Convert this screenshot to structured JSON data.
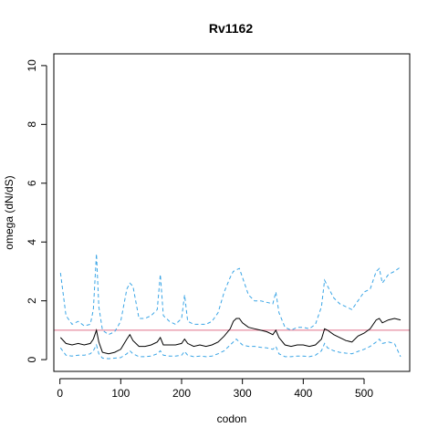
{
  "chart_data": {
    "type": "line",
    "title": "Rv1162",
    "xlabel": "codon",
    "ylabel": "omega (dN/dS)",
    "xlim": [
      -10,
      575
    ],
    "ylim": [
      -0.4,
      10.4
    ],
    "xticks": [
      0,
      100,
      200,
      300,
      400,
      500
    ],
    "yticks": [
      0,
      2,
      4,
      6,
      8,
      10
    ],
    "grid": false,
    "reference_line": {
      "y": 1,
      "color": "#e0708a"
    },
    "series": [
      {
        "style": "solid",
        "color": "#000000",
        "x": [
          1,
          10,
          20,
          30,
          40,
          50,
          55,
          60,
          64,
          70,
          80,
          90,
          100,
          110,
          115,
          120,
          130,
          140,
          150,
          160,
          165,
          170,
          180,
          190,
          200,
          205,
          210,
          220,
          230,
          240,
          250,
          260,
          270,
          280,
          285,
          290,
          295,
          300,
          310,
          320,
          330,
          340,
          350,
          355,
          360,
          370,
          380,
          390,
          400,
          410,
          420,
          430,
          435,
          440,
          450,
          460,
          470,
          480,
          490,
          500,
          510,
          520,
          525,
          530,
          540,
          550,
          560
        ],
        "y": [
          0.75,
          0.55,
          0.5,
          0.55,
          0.5,
          0.55,
          0.7,
          1.0,
          0.6,
          0.25,
          0.2,
          0.25,
          0.35,
          0.7,
          0.85,
          0.65,
          0.45,
          0.45,
          0.5,
          0.6,
          0.75,
          0.5,
          0.5,
          0.5,
          0.55,
          0.7,
          0.55,
          0.45,
          0.5,
          0.45,
          0.5,
          0.6,
          0.8,
          1.05,
          1.3,
          1.4,
          1.4,
          1.25,
          1.1,
          1.05,
          1.0,
          0.95,
          0.85,
          1.0,
          0.75,
          0.5,
          0.45,
          0.5,
          0.5,
          0.45,
          0.5,
          0.7,
          1.05,
          1.0,
          0.85,
          0.75,
          0.65,
          0.6,
          0.8,
          0.9,
          1.05,
          1.35,
          1.4,
          1.25,
          1.35,
          1.4,
          1.35
        ]
      },
      {
        "style": "dashed",
        "color": "#3aa5e6",
        "x": [
          1,
          10,
          20,
          30,
          40,
          50,
          55,
          60,
          64,
          70,
          80,
          90,
          100,
          110,
          115,
          120,
          130,
          140,
          150,
          160,
          165,
          170,
          180,
          190,
          200,
          205,
          210,
          220,
          230,
          240,
          250,
          260,
          270,
          280,
          285,
          290,
          295,
          300,
          310,
          320,
          330,
          340,
          350,
          355,
          360,
          370,
          380,
          390,
          400,
          410,
          420,
          430,
          435,
          440,
          450,
          460,
          470,
          480,
          490,
          500,
          510,
          520,
          525,
          530,
          540,
          550,
          560
        ],
        "y": [
          2.95,
          1.5,
          1.2,
          1.3,
          1.15,
          1.2,
          1.7,
          3.6,
          1.8,
          1.0,
          0.85,
          0.95,
          1.3,
          2.4,
          2.6,
          2.5,
          1.4,
          1.4,
          1.5,
          1.7,
          2.9,
          1.5,
          1.3,
          1.2,
          1.4,
          2.2,
          1.3,
          1.2,
          1.2,
          1.2,
          1.3,
          1.6,
          2.3,
          2.8,
          3.0,
          3.05,
          3.1,
          2.8,
          2.2,
          2.0,
          2.0,
          1.95,
          1.9,
          2.3,
          1.6,
          1.1,
          1.0,
          1.1,
          1.1,
          1.05,
          1.2,
          1.8,
          2.7,
          2.5,
          2.1,
          1.9,
          1.8,
          1.7,
          2.0,
          2.3,
          2.4,
          3.0,
          3.1,
          2.6,
          2.9,
          3.0,
          3.15
        ]
      },
      {
        "style": "dashed",
        "color": "#3aa5e6",
        "x": [
          1,
          10,
          20,
          30,
          40,
          50,
          55,
          60,
          64,
          70,
          80,
          90,
          100,
          110,
          115,
          120,
          130,
          140,
          150,
          160,
          165,
          170,
          180,
          190,
          200,
          205,
          210,
          220,
          230,
          240,
          250,
          260,
          270,
          280,
          285,
          290,
          295,
          300,
          310,
          320,
          330,
          340,
          350,
          355,
          360,
          370,
          380,
          390,
          400,
          410,
          420,
          430,
          435,
          440,
          450,
          460,
          470,
          480,
          490,
          500,
          510,
          520,
          525,
          530,
          540,
          550,
          560
        ],
        "y": [
          0.4,
          0.15,
          0.12,
          0.15,
          0.15,
          0.2,
          0.3,
          0.5,
          0.2,
          0.05,
          0.03,
          0.05,
          0.07,
          0.2,
          0.3,
          0.2,
          0.1,
          0.1,
          0.12,
          0.2,
          0.3,
          0.15,
          0.12,
          0.12,
          0.15,
          0.28,
          0.15,
          0.1,
          0.12,
          0.1,
          0.12,
          0.2,
          0.3,
          0.5,
          0.6,
          0.7,
          0.6,
          0.5,
          0.45,
          0.45,
          0.42,
          0.4,
          0.35,
          0.45,
          0.2,
          0.1,
          0.1,
          0.12,
          0.12,
          0.1,
          0.15,
          0.3,
          0.55,
          0.4,
          0.3,
          0.25,
          0.22,
          0.2,
          0.28,
          0.35,
          0.45,
          0.6,
          0.7,
          0.55,
          0.6,
          0.55,
          0.1
        ]
      }
    ]
  }
}
